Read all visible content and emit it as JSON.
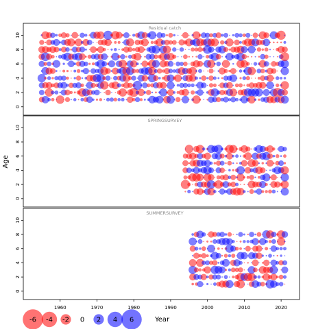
{
  "chart_data": {
    "type": "scatter",
    "subtype": "bubble-residuals",
    "ylabel": "Age",
    "xlabel": "Year",
    "x_ticks": [
      1960,
      1970,
      1980,
      1990,
      2000,
      2010,
      2020
    ],
    "xlim": [
      1950,
      2025
    ],
    "y_ticks": [
      0,
      2,
      4,
      6,
      8,
      10
    ],
    "ylim": [
      -0.5,
      11
    ],
    "colors": {
      "positive": "#0000ff",
      "negative": "#ff0000"
    },
    "legend": {
      "values": [
        -6,
        -4,
        -2,
        0,
        2,
        4,
        6
      ],
      "labels": [
        "-6",
        "-4",
        "-2",
        "0",
        "2",
        "4",
        "6"
      ]
    },
    "panels": [
      {
        "title": "Residual catch",
        "years": [
          1955,
          2021
        ],
        "ages": [
          1,
          10
        ],
        "sample_residuals": [
          {
            "year": 1956,
            "age": 10,
            "value": -2.2
          },
          {
            "year": 1973,
            "age": 10,
            "value": 3.0
          },
          {
            "year": 1975,
            "age": 10,
            "value": -2.5
          },
          {
            "year": 2020,
            "age": 10,
            "value": -3.0
          },
          {
            "year": 1956,
            "age": 7,
            "value": 2.8
          },
          {
            "year": 2021,
            "age": 7,
            "value": -2.8
          },
          {
            "year": 1955,
            "age": 4,
            "value": 2.5
          },
          {
            "year": 1981,
            "age": 3,
            "value": 3.0
          },
          {
            "year": 1980,
            "age": 2,
            "value": -2.9
          },
          {
            "year": 1994,
            "age": 1,
            "value": 2.0
          },
          {
            "year": 2019,
            "age": 2,
            "value": -3.0
          }
        ]
      },
      {
        "title": "SPRINGSURVEY",
        "years": [
          1994,
          2021
        ],
        "ages": [
          1,
          7
        ],
        "sample_residuals": [
          {
            "year": 1998,
            "age": 7,
            "value": -2.5
          },
          {
            "year": 2014,
            "age": 7,
            "value": 2.2
          },
          {
            "year": 2000,
            "age": 4,
            "value": 2.5
          },
          {
            "year": 1994,
            "age": 2,
            "value": -3.0
          },
          {
            "year": 2000,
            "age": 3,
            "value": -2.2
          }
        ]
      },
      {
        "title": "SUMMERSURVEY",
        "years": [
          1996,
          2021
        ],
        "ages": [
          1,
          8
        ],
        "sample_residuals": [
          {
            "year": 2020,
            "age": 8,
            "value": -2.4
          },
          {
            "year": 2020,
            "age": 7,
            "value": -2.5
          },
          {
            "year": 1996,
            "age": 4,
            "value": -2.0
          },
          {
            "year": 2017,
            "age": 1,
            "value": 2.8
          },
          {
            "year": 2012,
            "age": 2,
            "value": -2.4
          }
        ]
      }
    ]
  }
}
